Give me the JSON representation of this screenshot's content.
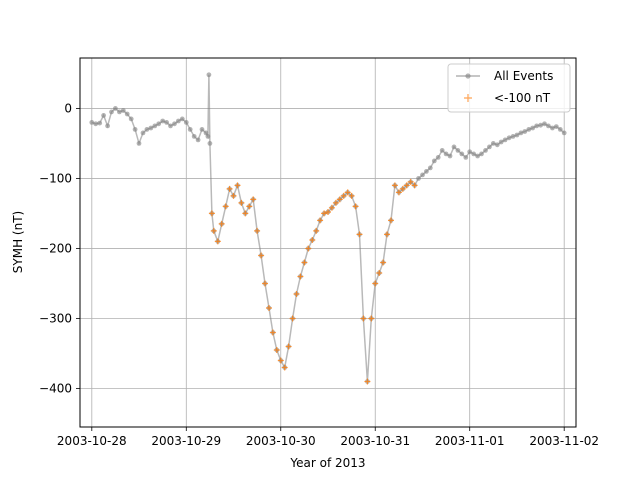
{
  "chart_data": {
    "type": "line",
    "xlabel": "Year of 2013",
    "ylabel": "SYMH (nT)",
    "xlim": [
      "2003-10-27T21:00",
      "2003-11-02T03:00"
    ],
    "ylim": [
      -455,
      72
    ],
    "x_ticks": [
      "2003-10-28",
      "2003-10-29",
      "2003-10-30",
      "2003-10-31",
      "2003-11-01",
      "2003-11-02"
    ],
    "y_ticks": [
      0,
      -100,
      -200,
      -300,
      -400
    ],
    "grid": true,
    "legend_position": "top-right",
    "colors": {
      "all_events": "#808080",
      "threshold": "#ff7f0e"
    },
    "series": [
      {
        "name": "All Events",
        "marker": "circle",
        "points": [
          [
            "2003-10-28T00:00",
            -20
          ],
          [
            "2003-10-28T01:00",
            -22
          ],
          [
            "2003-10-28T02:00",
            -21
          ],
          [
            "2003-10-28T03:00",
            -10
          ],
          [
            "2003-10-28T04:00",
            -25
          ],
          [
            "2003-10-28T05:00",
            -5
          ],
          [
            "2003-10-28T06:00",
            0
          ],
          [
            "2003-10-28T07:00",
            -5
          ],
          [
            "2003-10-28T08:00",
            -3
          ],
          [
            "2003-10-28T09:00",
            -8
          ],
          [
            "2003-10-28T10:00",
            -15
          ],
          [
            "2003-10-28T11:00",
            -30
          ],
          [
            "2003-10-28T12:00",
            -50
          ],
          [
            "2003-10-28T13:00",
            -35
          ],
          [
            "2003-10-28T14:00",
            -30
          ],
          [
            "2003-10-28T15:00",
            -28
          ],
          [
            "2003-10-28T16:00",
            -25
          ],
          [
            "2003-10-28T17:00",
            -22
          ],
          [
            "2003-10-28T18:00",
            -18
          ],
          [
            "2003-10-28T19:00",
            -20
          ],
          [
            "2003-10-28T20:00",
            -25
          ],
          [
            "2003-10-28T21:00",
            -22
          ],
          [
            "2003-10-28T22:00",
            -18
          ],
          [
            "2003-10-28T23:00",
            -15
          ],
          [
            "2003-10-29T00:00",
            -20
          ],
          [
            "2003-10-29T01:00",
            -30
          ],
          [
            "2003-10-29T02:00",
            -40
          ],
          [
            "2003-10-29T03:00",
            -45
          ],
          [
            "2003-10-29T04:00",
            -30
          ],
          [
            "2003-10-29T05:00",
            -35
          ],
          [
            "2003-10-29T05:30",
            -40
          ],
          [
            "2003-10-29T05:45",
            48
          ],
          [
            "2003-10-29T06:00",
            -50
          ],
          [
            "2003-10-29T06:30",
            -150
          ],
          [
            "2003-10-29T07:00",
            -175
          ],
          [
            "2003-10-29T08:00",
            -190
          ],
          [
            "2003-10-29T09:00",
            -165
          ],
          [
            "2003-10-29T10:00",
            -140
          ],
          [
            "2003-10-29T11:00",
            -115
          ],
          [
            "2003-10-29T12:00",
            -125
          ],
          [
            "2003-10-29T13:00",
            -110
          ],
          [
            "2003-10-29T14:00",
            -135
          ],
          [
            "2003-10-29T15:00",
            -150
          ],
          [
            "2003-10-29T16:00",
            -140
          ],
          [
            "2003-10-29T17:00",
            -130
          ],
          [
            "2003-10-29T18:00",
            -175
          ],
          [
            "2003-10-29T19:00",
            -210
          ],
          [
            "2003-10-29T20:00",
            -250
          ],
          [
            "2003-10-29T21:00",
            -285
          ],
          [
            "2003-10-29T22:00",
            -320
          ],
          [
            "2003-10-29T23:00",
            -345
          ],
          [
            "2003-10-30T00:00",
            -360
          ],
          [
            "2003-10-30T01:00",
            -370
          ],
          [
            "2003-10-30T02:00",
            -340
          ],
          [
            "2003-10-30T03:00",
            -300
          ],
          [
            "2003-10-30T04:00",
            -265
          ],
          [
            "2003-10-30T05:00",
            -240
          ],
          [
            "2003-10-30T06:00",
            -220
          ],
          [
            "2003-10-30T07:00",
            -200
          ],
          [
            "2003-10-30T08:00",
            -188
          ],
          [
            "2003-10-30T09:00",
            -175
          ],
          [
            "2003-10-30T10:00",
            -160
          ],
          [
            "2003-10-30T11:00",
            -150
          ],
          [
            "2003-10-30T12:00",
            -148
          ],
          [
            "2003-10-30T13:00",
            -142
          ],
          [
            "2003-10-30T14:00",
            -135
          ],
          [
            "2003-10-30T15:00",
            -130
          ],
          [
            "2003-10-30T16:00",
            -125
          ],
          [
            "2003-10-30T17:00",
            -120
          ],
          [
            "2003-10-30T18:00",
            -125
          ],
          [
            "2003-10-30T19:00",
            -140
          ],
          [
            "2003-10-30T20:00",
            -180
          ],
          [
            "2003-10-30T21:00",
            -300
          ],
          [
            "2003-10-30T22:00",
            -390
          ],
          [
            "2003-10-30T23:00",
            -300
          ],
          [
            "2003-10-31T00:00",
            -250
          ],
          [
            "2003-10-31T01:00",
            -235
          ],
          [
            "2003-10-31T02:00",
            -220
          ],
          [
            "2003-10-31T03:00",
            -180
          ],
          [
            "2003-10-31T04:00",
            -160
          ],
          [
            "2003-10-31T05:00",
            -110
          ],
          [
            "2003-10-31T06:00",
            -120
          ],
          [
            "2003-10-31T07:00",
            -115
          ],
          [
            "2003-10-31T08:00",
            -110
          ],
          [
            "2003-10-31T09:00",
            -105
          ],
          [
            "2003-10-31T10:00",
            -110
          ],
          [
            "2003-10-31T11:00",
            -100
          ],
          [
            "2003-10-31T12:00",
            -95
          ],
          [
            "2003-10-31T13:00",
            -90
          ],
          [
            "2003-10-31T14:00",
            -85
          ],
          [
            "2003-10-31T15:00",
            -75
          ],
          [
            "2003-10-31T16:00",
            -70
          ],
          [
            "2003-10-31T17:00",
            -60
          ],
          [
            "2003-10-31T18:00",
            -65
          ],
          [
            "2003-10-31T19:00",
            -68
          ],
          [
            "2003-10-31T20:00",
            -55
          ],
          [
            "2003-10-31T21:00",
            -60
          ],
          [
            "2003-10-31T22:00",
            -65
          ],
          [
            "2003-10-31T23:00",
            -70
          ],
          [
            "2003-11-01T00:00",
            -62
          ],
          [
            "2003-11-01T01:00",
            -65
          ],
          [
            "2003-11-01T02:00",
            -68
          ],
          [
            "2003-11-01T03:00",
            -65
          ],
          [
            "2003-11-01T04:00",
            -60
          ],
          [
            "2003-11-01T05:00",
            -55
          ],
          [
            "2003-11-01T06:00",
            -50
          ],
          [
            "2003-11-01T07:00",
            -52
          ],
          [
            "2003-11-01T08:00",
            -48
          ],
          [
            "2003-11-01T09:00",
            -45
          ],
          [
            "2003-11-01T10:00",
            -42
          ],
          [
            "2003-11-01T11:00",
            -40
          ],
          [
            "2003-11-01T12:00",
            -38
          ],
          [
            "2003-11-01T13:00",
            -35
          ],
          [
            "2003-11-01T14:00",
            -33
          ],
          [
            "2003-11-01T15:00",
            -30
          ],
          [
            "2003-11-01T16:00",
            -28
          ],
          [
            "2003-11-01T17:00",
            -25
          ],
          [
            "2003-11-01T18:00",
            -24
          ],
          [
            "2003-11-01T19:00",
            -22
          ],
          [
            "2003-11-01T20:00",
            -25
          ],
          [
            "2003-11-01T21:00",
            -28
          ],
          [
            "2003-11-01T22:00",
            -26
          ],
          [
            "2003-11-01T23:00",
            -30
          ],
          [
            "2003-11-02T00:00",
            -35
          ]
        ]
      },
      {
        "name": "<-100 nT",
        "marker": "plus",
        "points": [
          [
            "2003-10-29T06:30",
            -150
          ],
          [
            "2003-10-29T07:00",
            -175
          ],
          [
            "2003-10-29T08:00",
            -190
          ],
          [
            "2003-10-29T09:00",
            -165
          ],
          [
            "2003-10-29T10:00",
            -140
          ],
          [
            "2003-10-29T11:00",
            -115
          ],
          [
            "2003-10-29T12:00",
            -125
          ],
          [
            "2003-10-29T13:00",
            -110
          ],
          [
            "2003-10-29T14:00",
            -135
          ],
          [
            "2003-10-29T15:00",
            -150
          ],
          [
            "2003-10-29T16:00",
            -140
          ],
          [
            "2003-10-29T17:00",
            -130
          ],
          [
            "2003-10-29T18:00",
            -175
          ],
          [
            "2003-10-29T19:00",
            -210
          ],
          [
            "2003-10-29T20:00",
            -250
          ],
          [
            "2003-10-29T21:00",
            -285
          ],
          [
            "2003-10-29T22:00",
            -320
          ],
          [
            "2003-10-29T23:00",
            -345
          ],
          [
            "2003-10-30T00:00",
            -360
          ],
          [
            "2003-10-30T01:00",
            -370
          ],
          [
            "2003-10-30T02:00",
            -340
          ],
          [
            "2003-10-30T03:00",
            -300
          ],
          [
            "2003-10-30T04:00",
            -265
          ],
          [
            "2003-10-30T05:00",
            -240
          ],
          [
            "2003-10-30T06:00",
            -220
          ],
          [
            "2003-10-30T07:00",
            -200
          ],
          [
            "2003-10-30T08:00",
            -188
          ],
          [
            "2003-10-30T09:00",
            -175
          ],
          [
            "2003-10-30T10:00",
            -160
          ],
          [
            "2003-10-30T11:00",
            -150
          ],
          [
            "2003-10-30T12:00",
            -148
          ],
          [
            "2003-10-30T13:00",
            -142
          ],
          [
            "2003-10-30T14:00",
            -135
          ],
          [
            "2003-10-30T15:00",
            -130
          ],
          [
            "2003-10-30T16:00",
            -125
          ],
          [
            "2003-10-30T17:00",
            -120
          ],
          [
            "2003-10-30T18:00",
            -125
          ],
          [
            "2003-10-30T19:00",
            -140
          ],
          [
            "2003-10-30T20:00",
            -180
          ],
          [
            "2003-10-30T21:00",
            -300
          ],
          [
            "2003-10-30T22:00",
            -390
          ],
          [
            "2003-10-30T23:00",
            -300
          ],
          [
            "2003-10-31T00:00",
            -250
          ],
          [
            "2003-10-31T01:00",
            -235
          ],
          [
            "2003-10-31T02:00",
            -220
          ],
          [
            "2003-10-31T03:00",
            -180
          ],
          [
            "2003-10-31T04:00",
            -160
          ],
          [
            "2003-10-31T05:00",
            -110
          ],
          [
            "2003-10-31T06:00",
            -120
          ],
          [
            "2003-10-31T07:00",
            -115
          ],
          [
            "2003-10-31T08:00",
            -110
          ],
          [
            "2003-10-31T09:00",
            -105
          ],
          [
            "2003-10-31T10:00",
            -110
          ]
        ]
      }
    ]
  }
}
